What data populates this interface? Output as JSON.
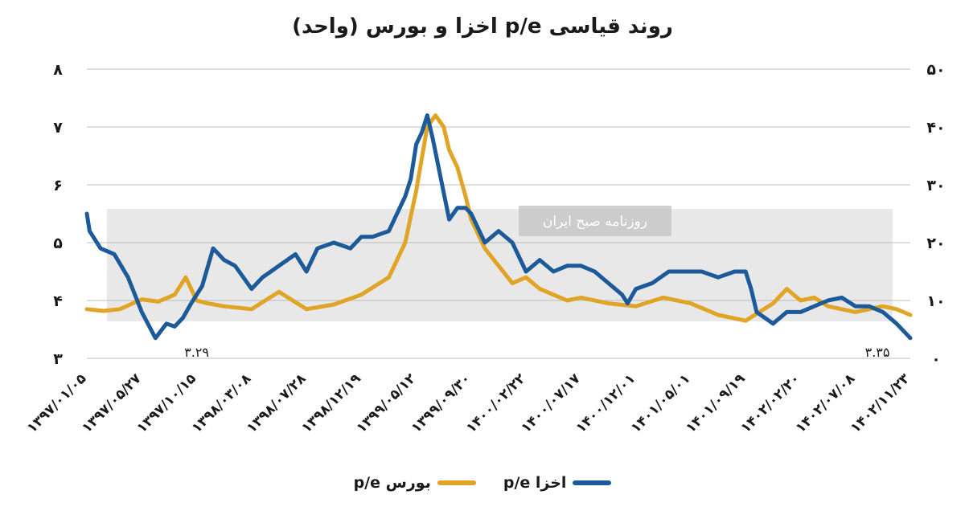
{
  "chart_data": {
    "type": "line",
    "title": "روند قیاسی p/e اخزا و بورس (واحد)",
    "left_axis": {
      "ticks": [
        "۳",
        "۴",
        "۵",
        "۶",
        "۷",
        "۸"
      ],
      "ylim": [
        3,
        8
      ]
    },
    "right_axis": {
      "ticks": [
        "۰",
        "۱۰",
        "۲۰",
        "۳۰",
        "۴۰",
        "۵۰"
      ],
      "ylim": [
        0,
        50
      ]
    },
    "grid": true,
    "legend_position": "bottom",
    "x_ticks": [
      "۱۳۹۷/۰۱/۰۵",
      "۱۳۹۷/۰۵/۲۷",
      "۱۳۹۷/۱۰/۱۵",
      "۱۳۹۸/۰۳/۰۸",
      "۱۳۹۸/۰۷/۲۸",
      "۱۳۹۸/۱۲/۱۹",
      "۱۳۹۹/۰۵/۱۲",
      "۱۳۹۹/۰۹/۳۰",
      "۱۴۰۰/۰۲/۲۲",
      "۱۴۰۰/۰۷/۱۷",
      "۱۴۰۰/۱۲/۰۱",
      "۱۴۰۱/۰۵/۰۱",
      "۱۴۰۱/۰۹/۱۹",
      "۱۴۰۲/۰۲/۲۰",
      "۱۴۰۲/۰۷/۰۸",
      "۱۴۰۲/۱۱/۲۳"
    ],
    "annotations": [
      {
        "text": "۳.۲۹",
        "x_index": 2
      },
      {
        "text": "۳.۳۵",
        "x_index": 14.4
      }
    ],
    "series": [
      {
        "name": "اخزا p/e",
        "axis": "left",
        "color": "#1c5a99",
        "x": [
          0,
          0.05,
          0.25,
          0.5,
          0.75,
          1.0,
          1.25,
          1.45,
          1.6,
          1.75,
          1.9,
          2.1,
          2.3,
          2.5,
          2.7,
          2.85,
          3.0,
          3.2,
          3.5,
          3.8,
          4.0,
          4.2,
          4.5,
          4.8,
          5.0,
          5.2,
          5.5,
          5.8,
          5.9,
          6.0,
          6.1,
          6.2,
          6.3,
          6.45,
          6.6,
          6.75,
          6.9,
          7.0,
          7.25,
          7.5,
          7.75,
          8.0,
          8.25,
          8.5,
          8.75,
          9.0,
          9.25,
          9.5,
          9.75,
          9.85,
          10.0,
          10.3,
          10.6,
          10.9,
          11.2,
          11.5,
          11.8,
          12.0,
          12.1,
          12.2,
          12.35,
          12.5,
          12.75,
          13.0,
          13.25,
          13.5,
          13.75,
          14.0,
          14.25,
          14.5,
          14.75,
          15.0
        ],
        "values": [
          5.5,
          5.2,
          4.9,
          4.8,
          4.4,
          3.8,
          3.35,
          3.6,
          3.55,
          3.7,
          3.95,
          4.25,
          4.9,
          4.7,
          4.6,
          4.4,
          4.2,
          4.4,
          4.6,
          4.8,
          4.5,
          4.9,
          5.0,
          4.9,
          5.1,
          5.1,
          5.2,
          5.8,
          6.1,
          6.7,
          6.9,
          7.2,
          6.8,
          6.1,
          5.4,
          5.6,
          5.6,
          5.5,
          5.0,
          5.2,
          5.0,
          4.5,
          4.7,
          4.5,
          4.6,
          4.6,
          4.5,
          4.3,
          4.1,
          3.95,
          4.2,
          4.3,
          4.5,
          4.5,
          4.5,
          4.4,
          4.5,
          4.5,
          4.2,
          3.8,
          3.7,
          3.6,
          3.8,
          3.8,
          3.9,
          4.0,
          4.05,
          3.9,
          3.9,
          3.8,
          3.6,
          3.35
        ]
      },
      {
        "name": "بورس p/e",
        "axis": "right",
        "color": "#e0a526",
        "x": [
          0,
          0.3,
          0.6,
          1.0,
          1.3,
          1.6,
          1.8,
          2.0,
          2.2,
          2.5,
          3.0,
          3.5,
          4.0,
          4.5,
          5.0,
          5.5,
          5.8,
          6.0,
          6.2,
          6.35,
          6.5,
          6.6,
          6.75,
          6.9,
          7.0,
          7.25,
          7.5,
          7.75,
          8.0,
          8.25,
          8.5,
          8.75,
          9.0,
          9.5,
          10.0,
          10.5,
          11.0,
          11.5,
          12.0,
          12.25,
          12.5,
          12.75,
          13.0,
          13.25,
          13.5,
          13.75,
          14.0,
          14.25,
          14.5,
          14.75,
          15.0
        ],
        "values": [
          8.5,
          8.2,
          8.5,
          10.2,
          9.8,
          11,
          14,
          10,
          9.5,
          9,
          8.5,
          11.5,
          8.5,
          9.3,
          11,
          14,
          20,
          29,
          40,
          42,
          40,
          36,
          33,
          28,
          24,
          19,
          16,
          13,
          14,
          12,
          11,
          10,
          10.5,
          9.5,
          9,
          10.5,
          9.5,
          7.5,
          6.5,
          8,
          9.5,
          12,
          10,
          10.5,
          9,
          8.5,
          8,
          8.5,
          9,
          8.5,
          7.5
        ]
      }
    ]
  },
  "watermark": {
    "tag": "روزنامه صبح ایران"
  }
}
